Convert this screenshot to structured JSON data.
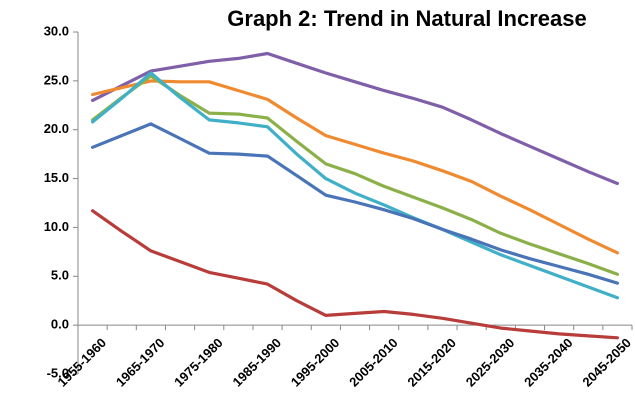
{
  "chart_data": {
    "type": "line",
    "title": "Graph 2: Trend in Natural Increase",
    "categories": [
      "1955-1960",
      null,
      "1965-1970",
      null,
      "1975-1980",
      null,
      "1985-1990",
      null,
      "1995-2000",
      null,
      "2005-2010",
      null,
      "2015-2020",
      null,
      "2025-2030",
      null,
      "2035-2040",
      null,
      "2045-2050"
    ],
    "series": [
      {
        "color": "#7f60a8",
        "values": [
          23.0,
          24.5,
          26.0,
          26.5,
          27.0,
          27.3,
          27.8,
          26.8,
          25.8,
          24.9,
          24.0,
          23.2,
          22.3,
          21.0,
          19.6,
          18.3,
          17.0,
          15.7,
          14.5
        ]
      },
      {
        "color": "#f08a30",
        "values": [
          23.6,
          24.3,
          25.0,
          24.9,
          24.9,
          24.0,
          23.1,
          21.2,
          19.4,
          18.5,
          17.6,
          16.8,
          15.8,
          14.7,
          13.2,
          11.8,
          10.3,
          8.8,
          7.4
        ]
      },
      {
        "color": "#8cb049",
        "values": [
          21.0,
          23.3,
          25.5,
          23.5,
          21.7,
          21.6,
          21.2,
          18.8,
          16.5,
          15.5,
          14.2,
          13.1,
          12.0,
          10.8,
          9.4,
          8.3,
          7.3,
          6.3,
          5.2
        ]
      },
      {
        "color": "#3fb0c8",
        "values": [
          20.8,
          23.2,
          25.8,
          23.3,
          21.0,
          20.7,
          20.3,
          17.5,
          15.0,
          13.5,
          12.3,
          11.0,
          9.8,
          8.5,
          7.2,
          6.1,
          5.0,
          3.9,
          2.8
        ]
      },
      {
        "color": "#4a74b8",
        "values": [
          18.2,
          19.4,
          20.6,
          19.1,
          17.6,
          17.5,
          17.3,
          15.3,
          13.3,
          12.6,
          11.8,
          10.9,
          9.8,
          8.8,
          7.7,
          6.8,
          6.0,
          5.2,
          4.3
        ]
      },
      {
        "color": "#b83d3a",
        "values": [
          11.7,
          9.6,
          7.6,
          6.5,
          5.4,
          4.8,
          4.2,
          2.5,
          1.0,
          1.2,
          1.4,
          1.1,
          0.7,
          0.2,
          -0.3,
          -0.6,
          -0.9,
          -1.1,
          -1.3
        ]
      }
    ],
    "ylim": [
      -5,
      30
    ],
    "yticks": [
      {
        "value": -5,
        "label": "-5.0"
      },
      {
        "value": 0,
        "label": "0.0"
      },
      {
        "value": 5,
        "label": "5.0"
      },
      {
        "value": 10,
        "label": "10.0"
      },
      {
        "value": 15,
        "label": "15.0"
      },
      {
        "value": 20,
        "label": "20.0"
      },
      {
        "value": 25,
        "label": "25.0"
      },
      {
        "value": 30,
        "label": "30.0"
      }
    ],
    "grid": false
  }
}
